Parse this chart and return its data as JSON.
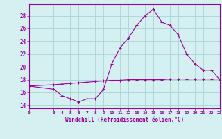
{
  "hours": [
    0,
    3,
    4,
    5,
    6,
    7,
    8,
    9,
    10,
    11,
    12,
    13,
    14,
    15,
    16,
    17,
    18,
    19,
    20,
    21,
    22,
    23
  ],
  "windchill": [
    17.0,
    16.5,
    15.5,
    15.0,
    14.5,
    15.0,
    15.0,
    16.5,
    20.5,
    23.0,
    24.5,
    26.5,
    28.0,
    29.0,
    27.0,
    26.5,
    25.0,
    22.0,
    20.5,
    19.5,
    19.5,
    18.0
  ],
  "temp": [
    17.0,
    17.2,
    17.3,
    17.4,
    17.5,
    17.6,
    17.7,
    17.8,
    17.9,
    17.9,
    18.0,
    18.0,
    18.0,
    18.0,
    18.0,
    18.1,
    18.1,
    18.1,
    18.1,
    18.1,
    18.1,
    18.1
  ],
  "line_color": "#990099",
  "bg_color": "#d4f0f0",
  "grid_color": "#b0d8d8",
  "xlabel": "Windchill (Refroidissement éolien,°C)",
  "xticks": [
    0,
    3,
    4,
    5,
    6,
    7,
    8,
    9,
    10,
    11,
    12,
    13,
    14,
    15,
    16,
    17,
    18,
    19,
    20,
    21,
    22,
    23
  ],
  "yticks": [
    14,
    16,
    18,
    20,
    22,
    24,
    26,
    28
  ],
  "ylim": [
    13.5,
    29.8
  ],
  "xlim": [
    0,
    23
  ]
}
